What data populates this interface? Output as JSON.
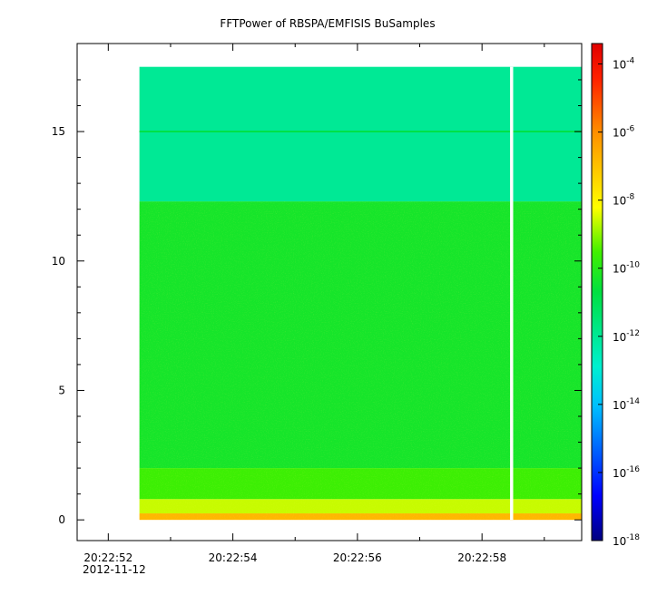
{
  "chart_data": {
    "type": "heatmap",
    "title": "FFTPower of RBSPA/EMFISIS  BuSamples",
    "xlabel": "",
    "ylabel": "",
    "x_axis": {
      "kind": "time",
      "date": "2012-11-12",
      "range": [
        "20:22:51.5",
        "20:22:59.6"
      ],
      "ticks": [
        {
          "t": "20:22:52",
          "label": "20:22:52"
        },
        {
          "t": "20:22:54",
          "label": "20:22:54"
        },
        {
          "t": "20:22:56",
          "label": "20:22:56"
        },
        {
          "t": "20:22:58",
          "label": "20:22:58"
        }
      ],
      "minor_ticks": [
        "20:22:53",
        "20:22:55",
        "20:22:57",
        "20:22:59"
      ]
    },
    "y_axis": {
      "range": [
        -0.8,
        18.4
      ],
      "ticks": [
        0,
        5,
        10,
        15
      ],
      "tick_labels": [
        "0",
        "5",
        "10",
        "15"
      ]
    },
    "data_extent": {
      "t_start": "20:22:52.5",
      "t_end": "20:22:59.6",
      "f_min": 0,
      "f_max": 17.5,
      "gap": [
        "20:22:58.45",
        "20:22:58.5"
      ]
    },
    "spectrogram_levels": [
      {
        "f_from": 12.3,
        "f_to": 17.5,
        "log_power": -12
      },
      {
        "f_from": 2.0,
        "f_to": 12.3,
        "log_power": -10.3
      },
      {
        "f_from": 0.8,
        "f_to": 2.0,
        "log_power": -9.6
      },
      {
        "f_from": 0.25,
        "f_to": 0.8,
        "log_power": -8.6
      },
      {
        "f_from": 0.0,
        "f_to": 0.25,
        "log_power": -6.8
      }
    ],
    "spectral_line": {
      "f": 15.0,
      "log_power": -10.8
    },
    "colorbar": {
      "scale": "log",
      "range_exp": [
        -18,
        -3.4
      ],
      "tick_exponents": [
        -18,
        -16,
        -14,
        -12,
        -10,
        -8,
        -6,
        -4
      ],
      "base": "10"
    }
  }
}
